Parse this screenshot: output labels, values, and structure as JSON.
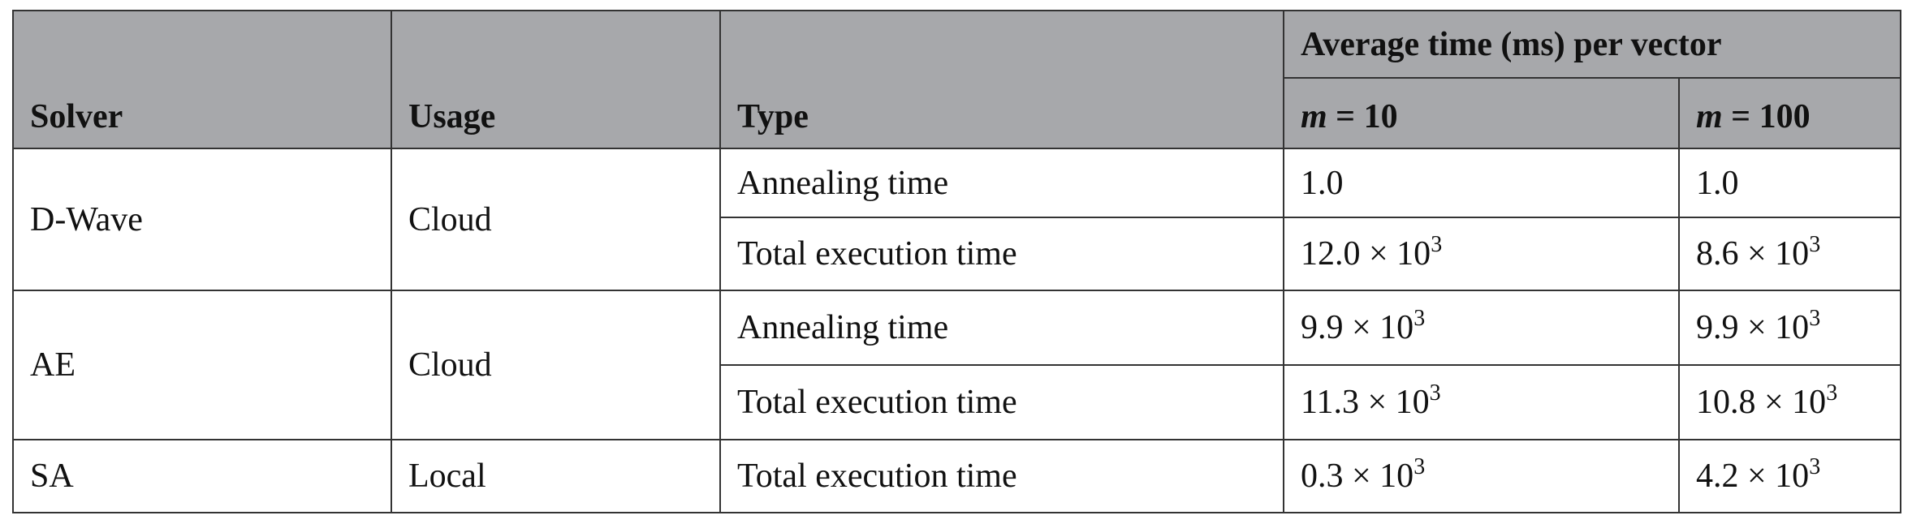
{
  "table": {
    "header": {
      "solver": "Solver",
      "usage": "Usage",
      "type": "Type",
      "group": "Average time (ms) per vector",
      "m10": {
        "var": "m",
        "rest": "= 10"
      },
      "m100": {
        "var": "m",
        "rest": "= 100"
      }
    },
    "rows": [
      {
        "solver": "D-Wave",
        "usage": "Cloud",
        "entries": [
          {
            "type": "Annealing time",
            "m10": {
              "base": "1.0"
            },
            "m100": {
              "base": "1.0"
            }
          },
          {
            "type": "Total execution time",
            "m10": {
              "base": "12.0 × 10",
              "sup": "3"
            },
            "m100": {
              "base": "8.6 × 10",
              "sup": "3"
            }
          }
        ]
      },
      {
        "solver": "AE",
        "usage": "Cloud",
        "entries": [
          {
            "type": "Annealing time",
            "m10": {
              "base": "9.9 × 10",
              "sup": "3"
            },
            "m100": {
              "base": "9.9 × 10",
              "sup": "3"
            }
          },
          {
            "type": "Total execution time",
            "m10": {
              "base": "11.3 × 10",
              "sup": "3"
            },
            "m100": {
              "base": "10.8 × 10",
              "sup": "3"
            }
          }
        ]
      },
      {
        "solver": "SA",
        "usage": "Local",
        "entries": [
          {
            "type": "Total execution time",
            "m10": {
              "base": "0.3 × 10",
              "sup": "3"
            },
            "m100": {
              "base": "4.2 × 10",
              "sup": "3"
            }
          }
        ]
      }
    ]
  }
}
